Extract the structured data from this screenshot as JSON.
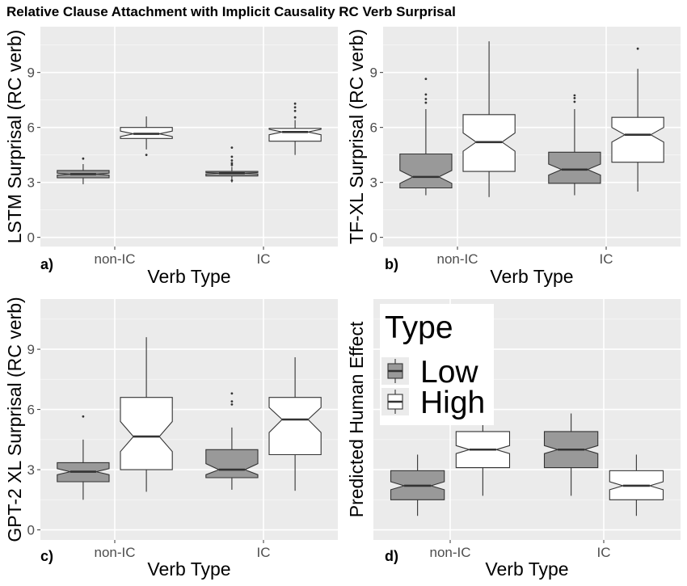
{
  "title": "Relative Clause Attachment with Implicit Causality RC Verb Surprisal",
  "colors": {
    "Low": "#999999",
    "High": "#ffffff",
    "panel": "#ebebeb"
  },
  "legend": {
    "title": "Type",
    "items": [
      "Low",
      "High"
    ],
    "placement": "top-left inside panel d"
  },
  "chart_data": [
    {
      "type": "boxplot",
      "panel_label": "a)",
      "xlabel": "Verb Type",
      "ylabel": "LSTM Surprisal (RC verb)",
      "categories": [
        "non-IC",
        "IC"
      ],
      "ylim": [
        -0.5,
        11.5
      ],
      "yticks": [
        0,
        3,
        6,
        9
      ],
      "series": [
        {
          "name": "Low",
          "boxes": [
            {
              "category": "non-IC",
              "whislo": 2.9,
              "q1": 3.25,
              "med": 3.45,
              "q3": 3.65,
              "whishi": 4.0,
              "notch_lo": 3.4,
              "notch_hi": 3.5,
              "outliers": [
                4.3
              ]
            },
            {
              "category": "IC",
              "whislo": 3.0,
              "q1": 3.35,
              "med": 3.5,
              "q3": 3.6,
              "whishi": 3.85,
              "notch_lo": 3.46,
              "notch_hi": 3.54,
              "outliers": [
                3.1,
                3.95,
                4.05,
                4.2,
                4.4,
                4.9
              ]
            }
          ]
        },
        {
          "name": "High",
          "boxes": [
            {
              "category": "non-IC",
              "whislo": 4.8,
              "q1": 5.4,
              "med": 5.65,
              "q3": 6.0,
              "whishi": 6.6,
              "notch_lo": 5.5,
              "notch_hi": 5.8,
              "outliers": [
                4.5
              ]
            },
            {
              "category": "IC",
              "whislo": 4.5,
              "q1": 5.25,
              "med": 5.75,
              "q3": 5.95,
              "whishi": 6.4,
              "notch_lo": 5.6,
              "notch_hi": 5.9,
              "outliers": [
                6.55,
                6.9,
                7.1,
                7.3
              ]
            }
          ]
        }
      ]
    },
    {
      "type": "boxplot",
      "panel_label": "b)",
      "xlabel": "Verb Type",
      "ylabel": "TF-XL Surprisal (RC verb)",
      "categories": [
        "non-IC",
        "IC"
      ],
      "ylim": [
        -0.5,
        11.5
      ],
      "yticks": [
        0,
        3,
        6,
        9
      ],
      "series": [
        {
          "name": "Low",
          "boxes": [
            {
              "category": "non-IC",
              "whislo": 2.3,
              "q1": 2.7,
              "med": 3.3,
              "q3": 4.55,
              "whishi": 7.0,
              "notch_lo": 2.95,
              "notch_hi": 3.65,
              "outliers": [
                7.35,
                7.55,
                7.8,
                8.65
              ]
            },
            {
              "category": "IC",
              "whislo": 2.3,
              "q1": 2.95,
              "med": 3.7,
              "q3": 4.65,
              "whishi": 7.0,
              "notch_lo": 3.4,
              "notch_hi": 4.0,
              "outliers": [
                7.4,
                7.6,
                7.75
              ]
            }
          ]
        },
        {
          "name": "High",
          "boxes": [
            {
              "category": "non-IC",
              "whislo": 2.2,
              "q1": 3.6,
              "med": 5.2,
              "q3": 6.7,
              "whishi": 10.7,
              "notch_lo": 4.7,
              "notch_hi": 5.7,
              "outliers": []
            },
            {
              "category": "IC",
              "whislo": 2.5,
              "q1": 4.1,
              "med": 5.6,
              "q3": 6.55,
              "whishi": 9.2,
              "notch_lo": 5.2,
              "notch_hi": 6.0,
              "outliers": [
                10.3
              ]
            }
          ]
        }
      ]
    },
    {
      "type": "boxplot",
      "panel_label": "c)",
      "xlabel": "Verb Type",
      "ylabel": "GPT-2 XL Surprisal (RC verb)",
      "categories": [
        "non-IC",
        "IC"
      ],
      "ylim": [
        -0.5,
        11.5
      ],
      "yticks": [
        0,
        3,
        6,
        9
      ],
      "series": [
        {
          "name": "Low",
          "boxes": [
            {
              "category": "non-IC",
              "whislo": 1.5,
              "q1": 2.4,
              "med": 2.9,
              "q3": 3.35,
              "whishi": 4.5,
              "notch_lo": 2.75,
              "notch_hi": 3.05,
              "outliers": [
                5.65
              ]
            },
            {
              "category": "IC",
              "whislo": 2.0,
              "q1": 2.6,
              "med": 3.0,
              "q3": 4.0,
              "whishi": 5.1,
              "notch_lo": 2.75,
              "notch_hi": 3.3,
              "outliers": [
                6.25,
                6.4,
                6.8
              ]
            }
          ]
        },
        {
          "name": "High",
          "boxes": [
            {
              "category": "non-IC",
              "whislo": 1.9,
              "q1": 3.0,
              "med": 4.65,
              "q3": 6.6,
              "whishi": 9.6,
              "notch_lo": 3.9,
              "notch_hi": 5.4,
              "outliers": []
            },
            {
              "category": "IC",
              "whislo": 1.95,
              "q1": 3.75,
              "med": 5.5,
              "q3": 6.6,
              "whishi": 8.6,
              "notch_lo": 4.85,
              "notch_hi": 6.1,
              "outliers": []
            }
          ]
        }
      ]
    },
    {
      "type": "boxplot",
      "panel_label": "d)",
      "xlabel": "Verb Type",
      "ylabel": "Predicted Human Effect",
      "categories": [
        "non-IC",
        "IC"
      ],
      "ylim": [
        -0.5,
        11.5
      ],
      "yticks": [],
      "series": [
        {
          "name": "Low",
          "boxes": [
            {
              "category": "non-IC",
              "whislo": 0.7,
              "q1": 1.5,
              "med": 2.2,
              "q3": 2.95,
              "whishi": 3.75,
              "notch_lo": 2.0,
              "notch_hi": 2.4,
              "outliers": []
            },
            {
              "category": "IC",
              "whislo": 1.7,
              "q1": 3.1,
              "med": 4.0,
              "q3": 4.9,
              "whishi": 5.8,
              "notch_lo": 3.8,
              "notch_hi": 4.2,
              "outliers": []
            }
          ]
        },
        {
          "name": "High",
          "boxes": [
            {
              "category": "non-IC",
              "whislo": 1.7,
              "q1": 3.1,
              "med": 4.0,
              "q3": 4.9,
              "whishi": 5.8,
              "notch_lo": 3.8,
              "notch_hi": 4.2,
              "outliers": []
            },
            {
              "category": "IC",
              "whislo": 0.7,
              "q1": 1.5,
              "med": 2.2,
              "q3": 2.95,
              "whishi": 3.75,
              "notch_lo": 2.0,
              "notch_hi": 2.4,
              "outliers": []
            }
          ]
        }
      ]
    }
  ]
}
